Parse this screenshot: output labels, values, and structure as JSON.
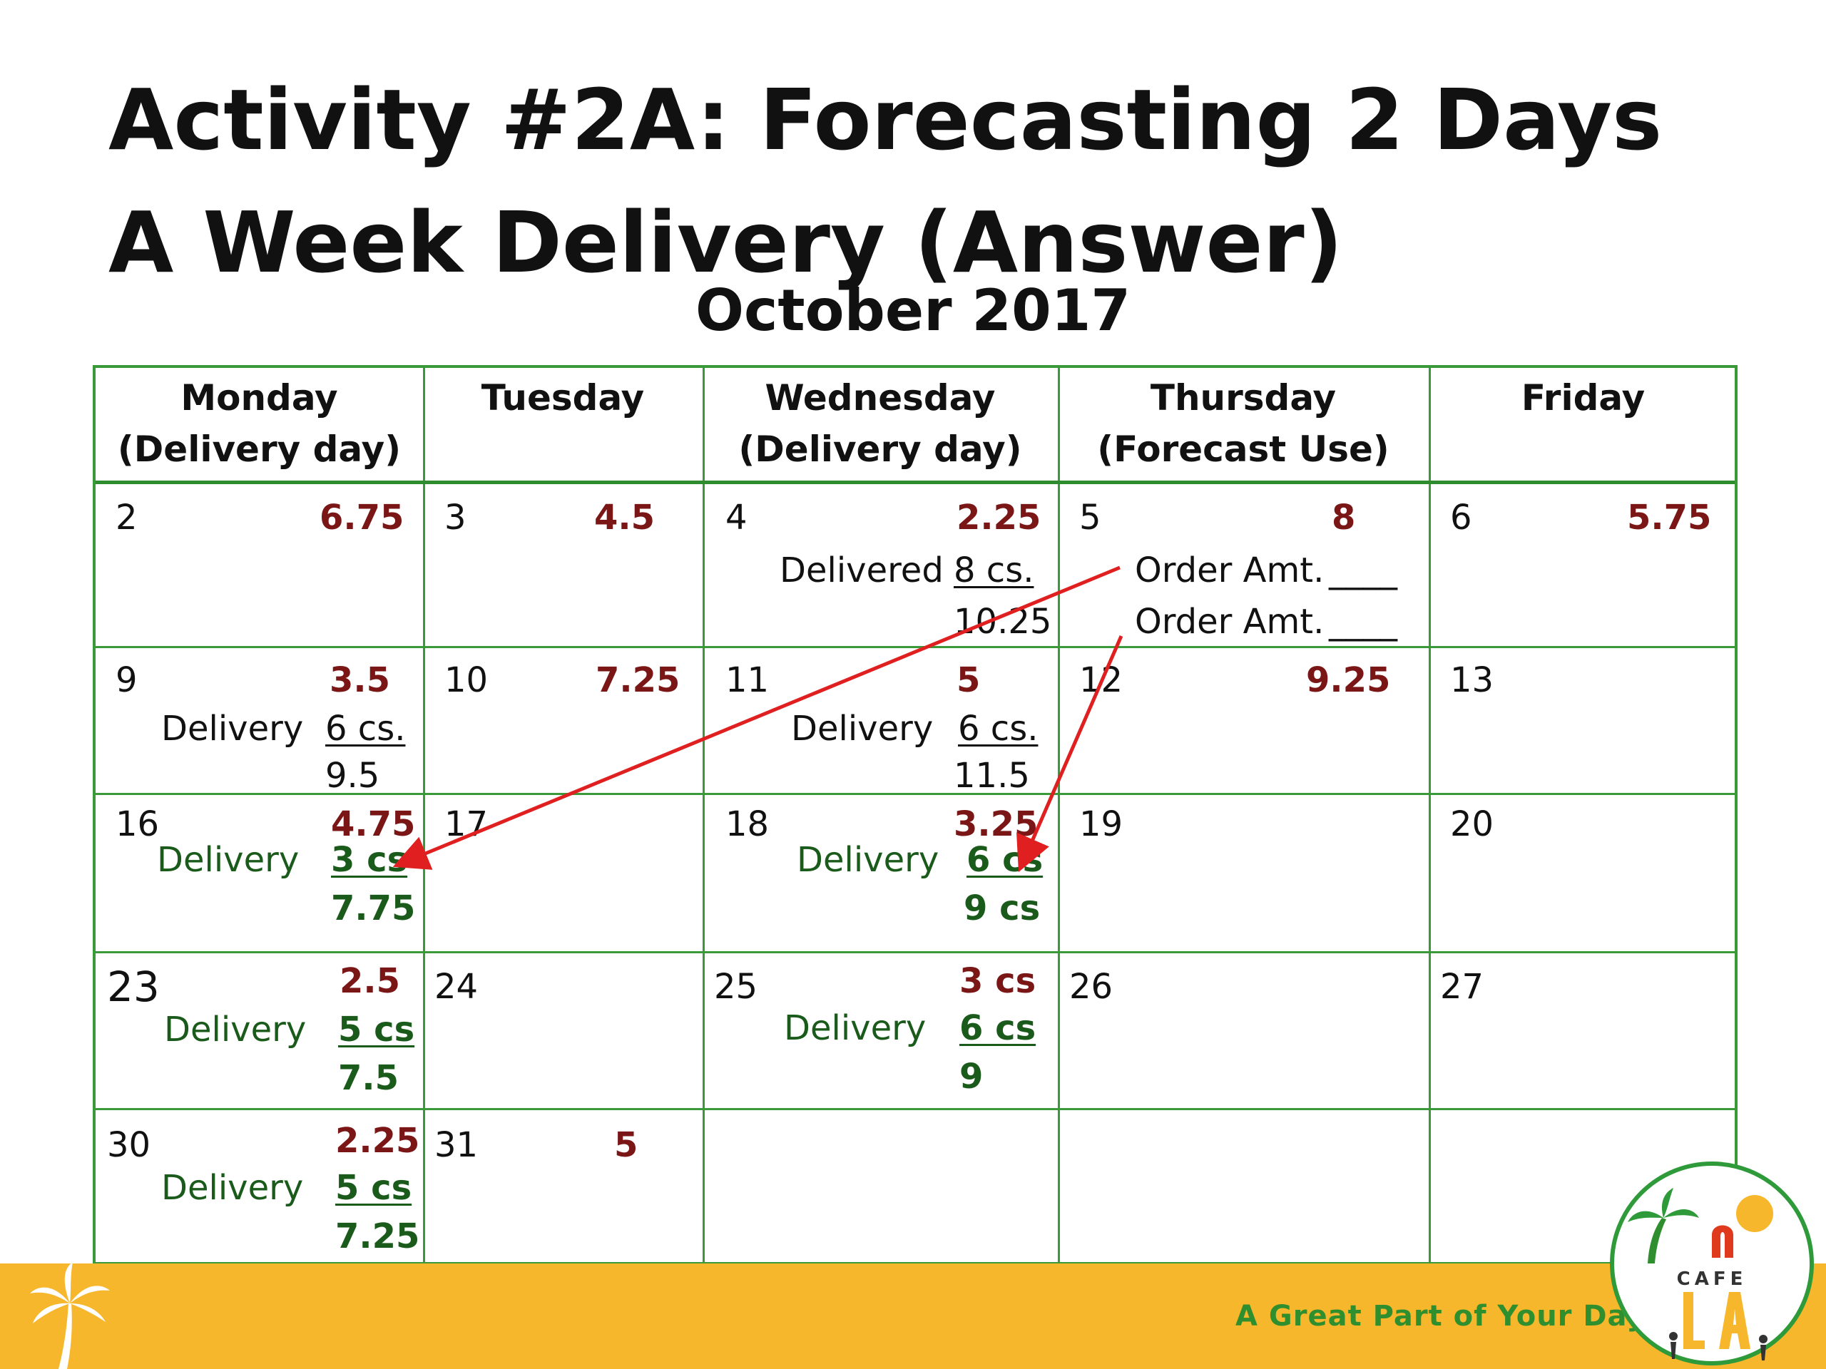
{
  "title": "Activity #2A: Forecasting 2 Days A Week Delivery (Answer)",
  "month": "October 2017",
  "headers": [
    {
      "line1": "Monday",
      "line2": "(Delivery day)"
    },
    {
      "line1": "Tuesday",
      "line2": ""
    },
    {
      "line1": "Wednesday",
      "line2": "(Delivery day)"
    },
    {
      "line1": "Thursday",
      "line2": "(Forecast Use)"
    },
    {
      "line1": "Friday",
      "line2": ""
    }
  ],
  "weeks": [
    {
      "mon": {
        "day": "2",
        "use": "6.75"
      },
      "tue": {
        "day": "3",
        "use": "4.5"
      },
      "wed": {
        "day": "4",
        "use": "2.25",
        "delivered_label": "Delivered",
        "delivered_amt": "8 cs.",
        "total": "10.25"
      },
      "thu": {
        "day": "5",
        "use": "8",
        "order1_label": "Order Amt.",
        "order1_blank": "____",
        "order2_label": "Order Amt.",
        "order2_blank": "____"
      },
      "fri": {
        "day": "6",
        "use": "5.75"
      }
    },
    {
      "mon": {
        "day": "9",
        "use": "3.5",
        "delivery_label": "Delivery",
        "delivery_amt": "6 cs.",
        "total": "9.5"
      },
      "tue": {
        "day": "10",
        "use": "7.25"
      },
      "wed": {
        "day": "11",
        "use": "5",
        "delivery_label": "Delivery",
        "delivery_amt": "6 cs.",
        "total": "11.5"
      },
      "thu": {
        "day": "12",
        "use": "9.25"
      },
      "fri": {
        "day": "13"
      }
    },
    {
      "mon": {
        "day": "16",
        "use": "4.75",
        "delivery_label": "Delivery",
        "delivery_amt": "3 cs",
        "total": "7.75"
      },
      "tue": {
        "day": "17"
      },
      "wed": {
        "day": "18",
        "use": "3.25",
        "delivery_label": "Delivery",
        "delivery_amt": "6 cs",
        "total": "9 cs"
      },
      "thu": {
        "day": "19"
      },
      "fri": {
        "day": "20"
      }
    },
    {
      "mon": {
        "day": "23",
        "use": "2.5",
        "delivery_label": "Delivery",
        "delivery_amt": "5 cs",
        "total": "7.5"
      },
      "tue": {
        "day": "24"
      },
      "wed": {
        "day": "25",
        "use": "3 cs",
        "delivery_label": "Delivery",
        "delivery_amt": "6 cs",
        "total": "9"
      },
      "thu": {
        "day": "26"
      },
      "fri": {
        "day": "27"
      }
    },
    {
      "mon": {
        "day": "30",
        "use": "2.25",
        "delivery_label": "Delivery",
        "delivery_amt": "5 cs",
        "total": "7.25"
      },
      "tue": {
        "day": "31",
        "use": "5"
      }
    }
  ],
  "footer": {
    "tagline": "A Great Part of Your Day",
    "logo_text": "CAFE"
  },
  "colors": {
    "grid": "#3a9a3a",
    "usage_red": "#7a1616",
    "delivery_green": "#1a5a1a",
    "arrow": "#e02020",
    "footer_band": "#f7b72c"
  }
}
